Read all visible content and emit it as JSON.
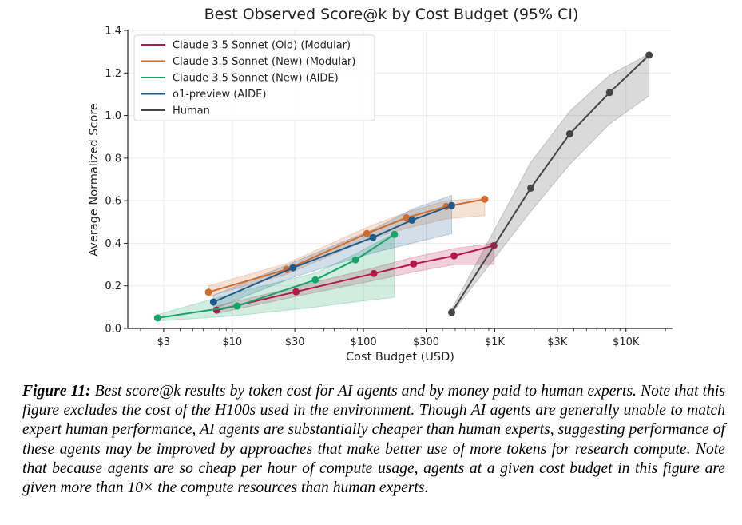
{
  "chart_data": {
    "type": "line",
    "title": "Best Observed Score@k by Cost Budget (95% CI)",
    "xlabel": "Cost Budget (USD)",
    "ylabel": "Average Normalized Score",
    "xscale": "log",
    "xlim": [
      1.6,
      22000
    ],
    "ylim": [
      0.0,
      1.4
    ],
    "xticks": [
      3,
      10,
      30,
      100,
      300,
      1000,
      3000,
      10000
    ],
    "xtick_labels": [
      "$3",
      "$10",
      "$30",
      "$100",
      "$300",
      "$1K",
      "$3K",
      "$10K"
    ],
    "yticks": [
      0.0,
      0.2,
      0.4,
      0.6,
      0.8,
      1.0,
      1.2,
      1.4
    ],
    "ytick_labels": [
      "0.0",
      "0.2",
      "0.4",
      "0.6",
      "0.8",
      "1.0",
      "1.2",
      "1.4"
    ],
    "grid": true,
    "legend_position": "top-left",
    "series": [
      {
        "name": "Claude 3.5 Sonnet (Old) (Modular)",
        "color": "#b5174a",
        "x": [
          7.6,
          30.6,
          120,
          241,
          490,
          985
        ],
        "y": [
          0.086,
          0.172,
          0.258,
          0.303,
          0.341,
          0.389
        ],
        "ci_low": [
          0.07,
          0.15,
          0.225,
          0.265,
          0.3,
          0.3
        ],
        "ci_high": [
          0.105,
          0.195,
          0.285,
          0.335,
          0.375,
          0.4
        ]
      },
      {
        "name": "Claude 3.5 Sonnet (New) (Modular)",
        "color": "#d26b2e",
        "x": [
          6.6,
          26,
          106,
          212,
          427,
          840
        ],
        "y": [
          0.17,
          0.277,
          0.446,
          0.52,
          0.573,
          0.607
        ],
        "ci_low": [
          0.15,
          0.255,
          0.415,
          0.47,
          0.515,
          0.53
        ],
        "ci_high": [
          0.2,
          0.305,
          0.475,
          0.545,
          0.6,
          0.612
        ]
      },
      {
        "name": "Claude 3.5 Sonnet (New) (AIDE)",
        "color": "#17a46b",
        "x": [
          2.7,
          10.9,
          43,
          87,
          172
        ],
        "y": [
          0.049,
          0.105,
          0.228,
          0.322,
          0.442
        ],
        "ci_low": [
          0.035,
          0.06,
          0.1,
          0.125,
          0.146
        ],
        "ci_high": [
          0.065,
          0.17,
          0.26,
          0.35,
          0.448
        ]
      },
      {
        "name": "o1-preview (AIDE)",
        "color": "#1f5a8c",
        "x": [
          7.2,
          29,
          118,
          234,
          470
        ],
        "y": [
          0.124,
          0.285,
          0.427,
          0.509,
          0.577
        ],
        "ci_low": [
          0.09,
          0.24,
          0.355,
          0.4,
          0.445
        ],
        "ci_high": [
          0.155,
          0.31,
          0.465,
          0.56,
          0.625
        ]
      },
      {
        "name": "Human",
        "color": "#454545",
        "x": [
          470,
          1880,
          3730,
          7500,
          15000
        ],
        "y": [
          0.075,
          0.659,
          0.914,
          1.108,
          1.284
        ],
        "ci_low": [
          0.07,
          0.55,
          0.77,
          0.96,
          1.093
        ],
        "ci_high": [
          0.09,
          0.78,
          1.02,
          1.19,
          1.29
        ]
      }
    ]
  },
  "caption": {
    "label": "Figure 11:",
    "text": " Best score@k results by token cost for AI agents and by money paid to human experts. Note that this figure excludes the cost of the H100s used in the environment. Though AI agents are generally unable to match expert human performance, AI agents are substantially cheaper than human experts, suggesting performance of these agents may be improved by approaches that make better use of more tokens for research compute. Note that because agents are so cheap per hour of compute usage, agents at a given cost budget in this figure are given more than 10× the compute resources than human experts."
  }
}
